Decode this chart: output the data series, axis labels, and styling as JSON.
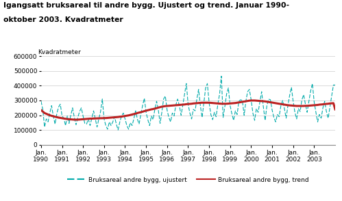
{
  "title_line1": "Igangsatt bruksareal til andre bygg. Ujustert og trend. Januar 1990-",
  "title_line2": "oktober 2003. Kvadratmeter",
  "ylabel": "Kvadratmeter",
  "ylim": [
    0,
    600000
  ],
  "yticks": [
    0,
    100000,
    200000,
    300000,
    400000,
    500000,
    600000
  ],
  "ytick_labels": [
    "0",
    "100000",
    "200000",
    "300000",
    "400000",
    "500000",
    "600000"
  ],
  "xlabel_years": [
    "1990",
    "1991",
    "1992",
    "1993",
    "1994",
    "1995",
    "1996",
    "1997",
    "1998",
    "1999",
    "2000",
    "2001",
    "2002",
    "2003"
  ],
  "line1_label": "Bruksareal andre bygg, ujustert",
  "line2_label": "Bruksareal andre bygg, trend",
  "line1_color": "#00AAAA",
  "line2_color": "#BB2222",
  "bg_color": "#ffffff",
  "ujustert": [
    295000,
    240000,
    120000,
    175000,
    155000,
    215000,
    265000,
    195000,
    140000,
    210000,
    255000,
    275000,
    195000,
    180000,
    130000,
    195000,
    145000,
    200000,
    250000,
    185000,
    135000,
    185000,
    225000,
    250000,
    195000,
    145000,
    140000,
    175000,
    130000,
    180000,
    230000,
    175000,
    120000,
    175000,
    225000,
    310000,
    175000,
    130000,
    105000,
    155000,
    130000,
    155000,
    190000,
    140000,
    100000,
    155000,
    195000,
    215000,
    175000,
    130000,
    105000,
    150000,
    130000,
    175000,
    230000,
    175000,
    140000,
    205000,
    265000,
    315000,
    220000,
    170000,
    130000,
    195000,
    170000,
    240000,
    295000,
    235000,
    145000,
    220000,
    310000,
    330000,
    235000,
    185000,
    155000,
    215000,
    195000,
    270000,
    310000,
    265000,
    200000,
    270000,
    345000,
    415000,
    275000,
    215000,
    175000,
    240000,
    230000,
    310000,
    375000,
    265000,
    185000,
    285000,
    385000,
    415000,
    285000,
    205000,
    170000,
    220000,
    190000,
    275000,
    345000,
    465000,
    185000,
    260000,
    345000,
    385000,
    265000,
    210000,
    165000,
    230000,
    205000,
    295000,
    305000,
    300000,
    200000,
    295000,
    360000,
    375000,
    305000,
    215000,
    165000,
    245000,
    220000,
    290000,
    360000,
    255000,
    165000,
    265000,
    310000,
    305000,
    235000,
    185000,
    155000,
    205000,
    190000,
    265000,
    300000,
    245000,
    180000,
    265000,
    335000,
    390000,
    295000,
    220000,
    175000,
    245000,
    225000,
    305000,
    340000,
    275000,
    220000,
    295000,
    365000,
    415000,
    290000,
    220000,
    155000,
    205000,
    180000,
    250000,
    295000,
    225000,
    180000,
    255000,
    330000,
    405000,
    405000
  ],
  "trend": [
    235000,
    225000,
    215000,
    210000,
    205000,
    200000,
    196000,
    193000,
    190000,
    187000,
    184000,
    182000,
    180000,
    178000,
    176000,
    174000,
    173000,
    172000,
    171000,
    170000,
    170000,
    170000,
    171000,
    172000,
    173000,
    174000,
    175000,
    176000,
    177000,
    177000,
    178000,
    178000,
    179000,
    179000,
    180000,
    180000,
    181000,
    181000,
    182000,
    183000,
    184000,
    185000,
    186000,
    187000,
    188000,
    190000,
    191000,
    193000,
    195000,
    197000,
    199000,
    202000,
    205000,
    208000,
    211000,
    215000,
    218000,
    221000,
    224000,
    228000,
    231000,
    234000,
    237000,
    240000,
    242000,
    245000,
    248000,
    252000,
    255000,
    258000,
    260000,
    262000,
    263000,
    264000,
    265000,
    266000,
    267000,
    268000,
    269000,
    270000,
    271000,
    272000,
    273000,
    275000,
    276000,
    277000,
    278000,
    280000,
    281000,
    282000,
    283000,
    284000,
    285000,
    285000,
    285000,
    285000,
    285000,
    284000,
    283000,
    282000,
    281000,
    280000,
    279000,
    278000,
    278000,
    278000,
    278000,
    279000,
    280000,
    281000,
    282000,
    283000,
    285000,
    287000,
    289000,
    291000,
    293000,
    295000,
    297000,
    299000,
    300000,
    300000,
    300000,
    299000,
    298000,
    297000,
    296000,
    295000,
    294000,
    292000,
    290000,
    288000,
    286000,
    284000,
    282000,
    280000,
    278000,
    276000,
    274000,
    272000,
    270000,
    268000,
    267000,
    266000,
    265000,
    264000,
    263000,
    263000,
    263000,
    263000,
    263000,
    264000,
    264000,
    265000,
    266000,
    267000,
    268000,
    269000,
    270000,
    272000,
    273000,
    274000,
    276000,
    277000,
    278000,
    280000,
    281000,
    282000,
    240000
  ]
}
